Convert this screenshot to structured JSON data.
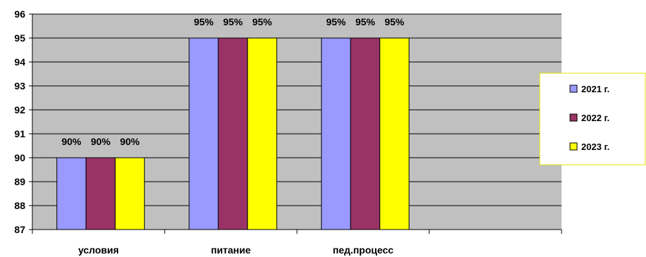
{
  "chart_data": {
    "type": "bar",
    "categories": [
      "условия",
      "питание",
      "пед.процесс"
    ],
    "series": [
      {
        "name": "2021 г.",
        "values": [
          90,
          95,
          95
        ],
        "labels": [
          "90%",
          "95%",
          "95%"
        ],
        "color": "#9999FF"
      },
      {
        "name": "2022 г.",
        "values": [
          90,
          95,
          95
        ],
        "labels": [
          "90%",
          "95%",
          "95%"
        ],
        "color": "#993366"
      },
      {
        "name": "2023 г.",
        "values": [
          90,
          95,
          95
        ],
        "labels": [
          "90%",
          "95%",
          "95%"
        ],
        "color": "#FFFF00"
      }
    ],
    "ylim": [
      87,
      96
    ],
    "yticks": [
      87,
      88,
      89,
      90,
      91,
      92,
      93,
      94,
      95,
      96
    ],
    "grid": true,
    "legend_position": "right",
    "plot_background": "#C0C0C0",
    "legend_border_color": "#E6E600"
  }
}
